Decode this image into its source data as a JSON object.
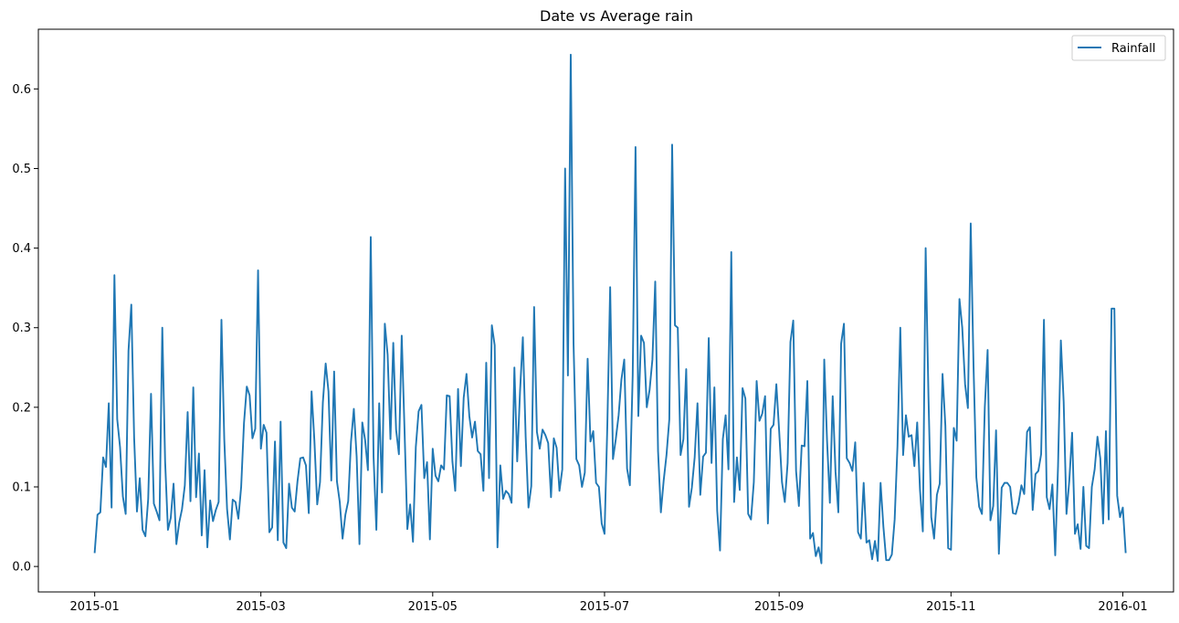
{
  "chart_data": {
    "type": "line",
    "title": "Date vs Average rain",
    "xlabel": "",
    "ylabel": "",
    "x_start": "2015-01-01",
    "x_end": "2015-12-31",
    "xlim": [
      "2014-12-12",
      "2016-01-19"
    ],
    "ylim": [
      -0.032,
      0.675
    ],
    "x_ticks": [
      "2015-01",
      "2015-03",
      "2015-05",
      "2015-07",
      "2015-09",
      "2015-11",
      "2016-01"
    ],
    "y_ticks": [
      "0.0",
      "0.1",
      "0.2",
      "0.3",
      "0.4",
      "0.5",
      "0.6"
    ],
    "legend": {
      "position": "top-right",
      "entries": [
        "Rainfall"
      ]
    },
    "grid": false,
    "series": [
      {
        "name": "Rainfall",
        "color": "#1f77b4",
        "values": [
          0.018,
          0.065,
          0.068,
          0.137,
          0.125,
          0.205,
          0.074,
          0.366,
          0.185,
          0.15,
          0.088,
          0.066,
          0.271,
          0.329,
          0.162,
          0.069,
          0.111,
          0.046,
          0.038,
          0.085,
          0.217,
          0.079,
          0.069,
          0.058,
          0.3,
          0.132,
          0.046,
          0.061,
          0.104,
          0.028,
          0.055,
          0.072,
          0.102,
          0.194,
          0.082,
          0.225,
          0.087,
          0.142,
          0.039,
          0.121,
          0.024,
          0.083,
          0.057,
          0.071,
          0.081,
          0.31,
          0.16,
          0.072,
          0.034,
          0.084,
          0.081,
          0.06,
          0.1,
          0.18,
          0.226,
          0.215,
          0.161,
          0.173,
          0.372,
          0.148,
          0.178,
          0.168,
          0.043,
          0.049,
          0.157,
          0.033,
          0.182,
          0.03,
          0.023,
          0.104,
          0.074,
          0.069,
          0.107,
          0.136,
          0.137,
          0.127,
          0.067,
          0.22,
          0.158,
          0.078,
          0.106,
          0.206,
          0.255,
          0.22,
          0.108,
          0.245,
          0.107,
          0.081,
          0.035,
          0.065,
          0.082,
          0.157,
          0.198,
          0.138,
          0.028,
          0.181,
          0.159,
          0.121,
          0.414,
          0.138,
          0.046,
          0.205,
          0.093,
          0.305,
          0.266,
          0.16,
          0.281,
          0.172,
          0.141,
          0.29,
          0.171,
          0.047,
          0.078,
          0.031,
          0.15,
          0.195,
          0.203,
          0.111,
          0.131,
          0.034,
          0.148,
          0.114,
          0.107,
          0.127,
          0.122,
          0.215,
          0.214,
          0.132,
          0.095,
          0.223,
          0.126,
          0.212,
          0.242,
          0.189,
          0.162,
          0.182,
          0.145,
          0.141,
          0.095,
          0.256,
          0.111,
          0.303,
          0.278,
          0.024,
          0.127,
          0.085,
          0.095,
          0.091,
          0.08,
          0.25,
          0.132,
          0.22,
          0.288,
          0.163,
          0.074,
          0.101,
          0.326,
          0.169,
          0.148,
          0.172,
          0.165,
          0.155,
          0.087,
          0.161,
          0.149,
          0.095,
          0.122,
          0.5,
          0.24,
          0.643,
          0.28,
          0.135,
          0.127,
          0.1,
          0.118,
          0.261,
          0.157,
          0.17,
          0.105,
          0.1,
          0.054,
          0.041,
          0.178,
          0.351,
          0.135,
          0.16,
          0.19,
          0.235,
          0.26,
          0.123,
          0.102,
          0.24,
          0.527,
          0.189,
          0.29,
          0.281,
          0.2,
          0.222,
          0.26,
          0.358,
          0.145,
          0.068,
          0.108,
          0.14,
          0.185,
          0.53,
          0.303,
          0.3,
          0.14,
          0.16,
          0.248,
          0.075,
          0.099,
          0.137,
          0.205,
          0.09,
          0.138,
          0.143,
          0.287,
          0.13,
          0.225,
          0.07,
          0.02,
          0.16,
          0.19,
          0.122,
          0.395,
          0.081,
          0.137,
          0.096,
          0.224,
          0.211,
          0.066,
          0.059,
          0.106,
          0.233,
          0.183,
          0.192,
          0.214,
          0.054,
          0.173,
          0.178,
          0.229,
          0.17,
          0.106,
          0.081,
          0.13,
          0.282,
          0.309,
          0.12,
          0.076,
          0.152,
          0.151,
          0.233,
          0.035,
          0.042,
          0.013,
          0.024,
          0.004,
          0.26,
          0.158,
          0.08,
          0.214,
          0.119,
          0.068,
          0.28,
          0.305,
          0.136,
          0.13,
          0.12,
          0.156,
          0.043,
          0.035,
          0.105,
          0.03,
          0.033,
          0.009,
          0.032,
          0.007,
          0.105,
          0.05,
          0.008,
          0.008,
          0.015,
          0.059,
          0.151,
          0.3,
          0.14,
          0.19,
          0.163,
          0.165,
          0.126,
          0.181,
          0.096,
          0.044,
          0.4,
          0.214,
          0.062,
          0.035,
          0.09,
          0.104,
          0.242,
          0.177,
          0.023,
          0.021,
          0.174,
          0.158,
          0.336,
          0.3,
          0.229,
          0.199,
          0.431,
          0.252,
          0.112,
          0.075,
          0.066,
          0.2,
          0.272,
          0.058,
          0.076,
          0.171,
          0.016,
          0.099,
          0.105,
          0.105,
          0.1,
          0.067,
          0.066,
          0.08,
          0.102,
          0.091,
          0.169,
          0.175,
          0.071,
          0.116,
          0.12,
          0.141,
          0.31,
          0.087,
          0.072,
          0.103,
          0.014,
          0.126,
          0.284,
          0.207,
          0.066,
          0.108,
          0.168,
          0.041,
          0.053,
          0.022,
          0.1,
          0.026,
          0.023,
          0.1,
          0.122,
          0.163,
          0.136,
          0.054,
          0.17,
          0.059,
          0.324,
          0.324,
          0.089,
          0.062,
          0.074,
          0.018
        ]
      }
    ]
  }
}
